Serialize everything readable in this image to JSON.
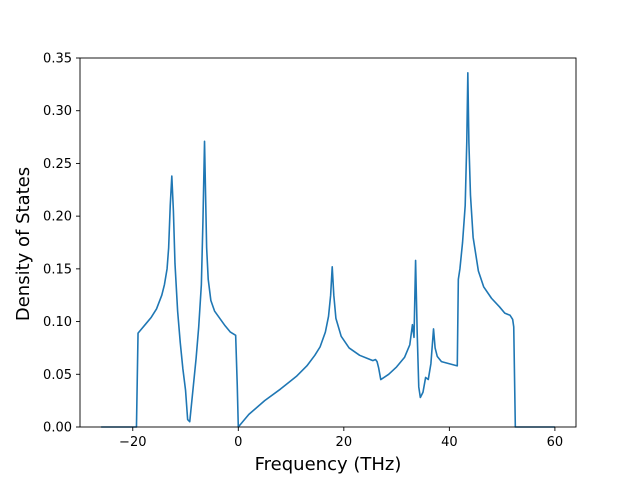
{
  "chart_data": {
    "type": "line",
    "title": "",
    "xlabel": "Frequency (THz)",
    "ylabel": "Density of States",
    "xlim": [
      -30,
      64
    ],
    "ylim": [
      0.0,
      0.35
    ],
    "grid": false,
    "legend": "none",
    "x_ticks": [
      -20,
      0,
      20,
      40,
      60
    ],
    "x_tick_labels": [
      "−20",
      "0",
      "20",
      "40",
      "60"
    ],
    "y_ticks": [
      0.0,
      0.05,
      0.1,
      0.15,
      0.2,
      0.25,
      0.3,
      0.35
    ],
    "y_tick_labels": [
      "0.00",
      "0.05",
      "0.10",
      "0.15",
      "0.20",
      "0.25",
      "0.30",
      "0.35"
    ],
    "line_color": "#1f77b4",
    "series": [
      {
        "x": [
          -26,
          -19.3,
          -19.0,
          -18.5,
          -17.5,
          -16.5,
          -15.5,
          -14.5,
          -14.0,
          -13.5,
          -13.2,
          -12.9,
          -12.6,
          -12.3,
          -12.0,
          -11.5,
          -11.0,
          -10.5,
          -10.0,
          -9.6,
          -9.2,
          -8.5,
          -8.0,
          -7.5,
          -7.0,
          -6.7,
          -6.4,
          -6.2,
          -6.0,
          -5.7,
          -5.2,
          -4.5,
          -3.5,
          -2.5,
          -1.5,
          -0.5,
          -0.2,
          0.0,
          2,
          5,
          8,
          11,
          13,
          14.5,
          15.5,
          16.5,
          17.1,
          17.5,
          17.8,
          18.1,
          18.5,
          19.5,
          21,
          23,
          24.5,
          25.5,
          26.0,
          26.3,
          26.6,
          27.0,
          28.5,
          30,
          31.5,
          32.5,
          33.0,
          33.3,
          33.6,
          33.9,
          34.2,
          34.5,
          35.0,
          35.5,
          36.0,
          36.5,
          37.0,
          37.3,
          37.7,
          38.5,
          40.0,
          41.5,
          41.7,
          42.0,
          42.5,
          43.0,
          43.3,
          43.5,
          43.7,
          44.0,
          44.5,
          45.5,
          46.5,
          48.0,
          49.5,
          50.5,
          51.5,
          52.0,
          52.2,
          52.5,
          53.5,
          60
        ],
        "y": [
          0,
          0,
          0.089,
          0.092,
          0.098,
          0.104,
          0.112,
          0.125,
          0.135,
          0.15,
          0.17,
          0.21,
          0.238,
          0.205,
          0.155,
          0.11,
          0.08,
          0.055,
          0.035,
          0.007,
          0.005,
          0.04,
          0.065,
          0.095,
          0.135,
          0.195,
          0.271,
          0.22,
          0.17,
          0.14,
          0.12,
          0.11,
          0.103,
          0.096,
          0.09,
          0.087,
          0.04,
          0,
          0.012,
          0.025,
          0.036,
          0.048,
          0.058,
          0.068,
          0.076,
          0.09,
          0.105,
          0.125,
          0.152,
          0.125,
          0.103,
          0.086,
          0.075,
          0.068,
          0.065,
          0.063,
          0.064,
          0.062,
          0.056,
          0.045,
          0.05,
          0.057,
          0.066,
          0.078,
          0.097,
          0.085,
          0.158,
          0.09,
          0.038,
          0.028,
          0.033,
          0.047,
          0.045,
          0.06,
          0.093,
          0.075,
          0.067,
          0.062,
          0.06,
          0.058,
          0.14,
          0.15,
          0.175,
          0.21,
          0.27,
          0.336,
          0.27,
          0.22,
          0.18,
          0.148,
          0.133,
          0.122,
          0.114,
          0.108,
          0.106,
          0.102,
          0.095,
          0,
          0,
          0
        ]
      }
    ]
  }
}
